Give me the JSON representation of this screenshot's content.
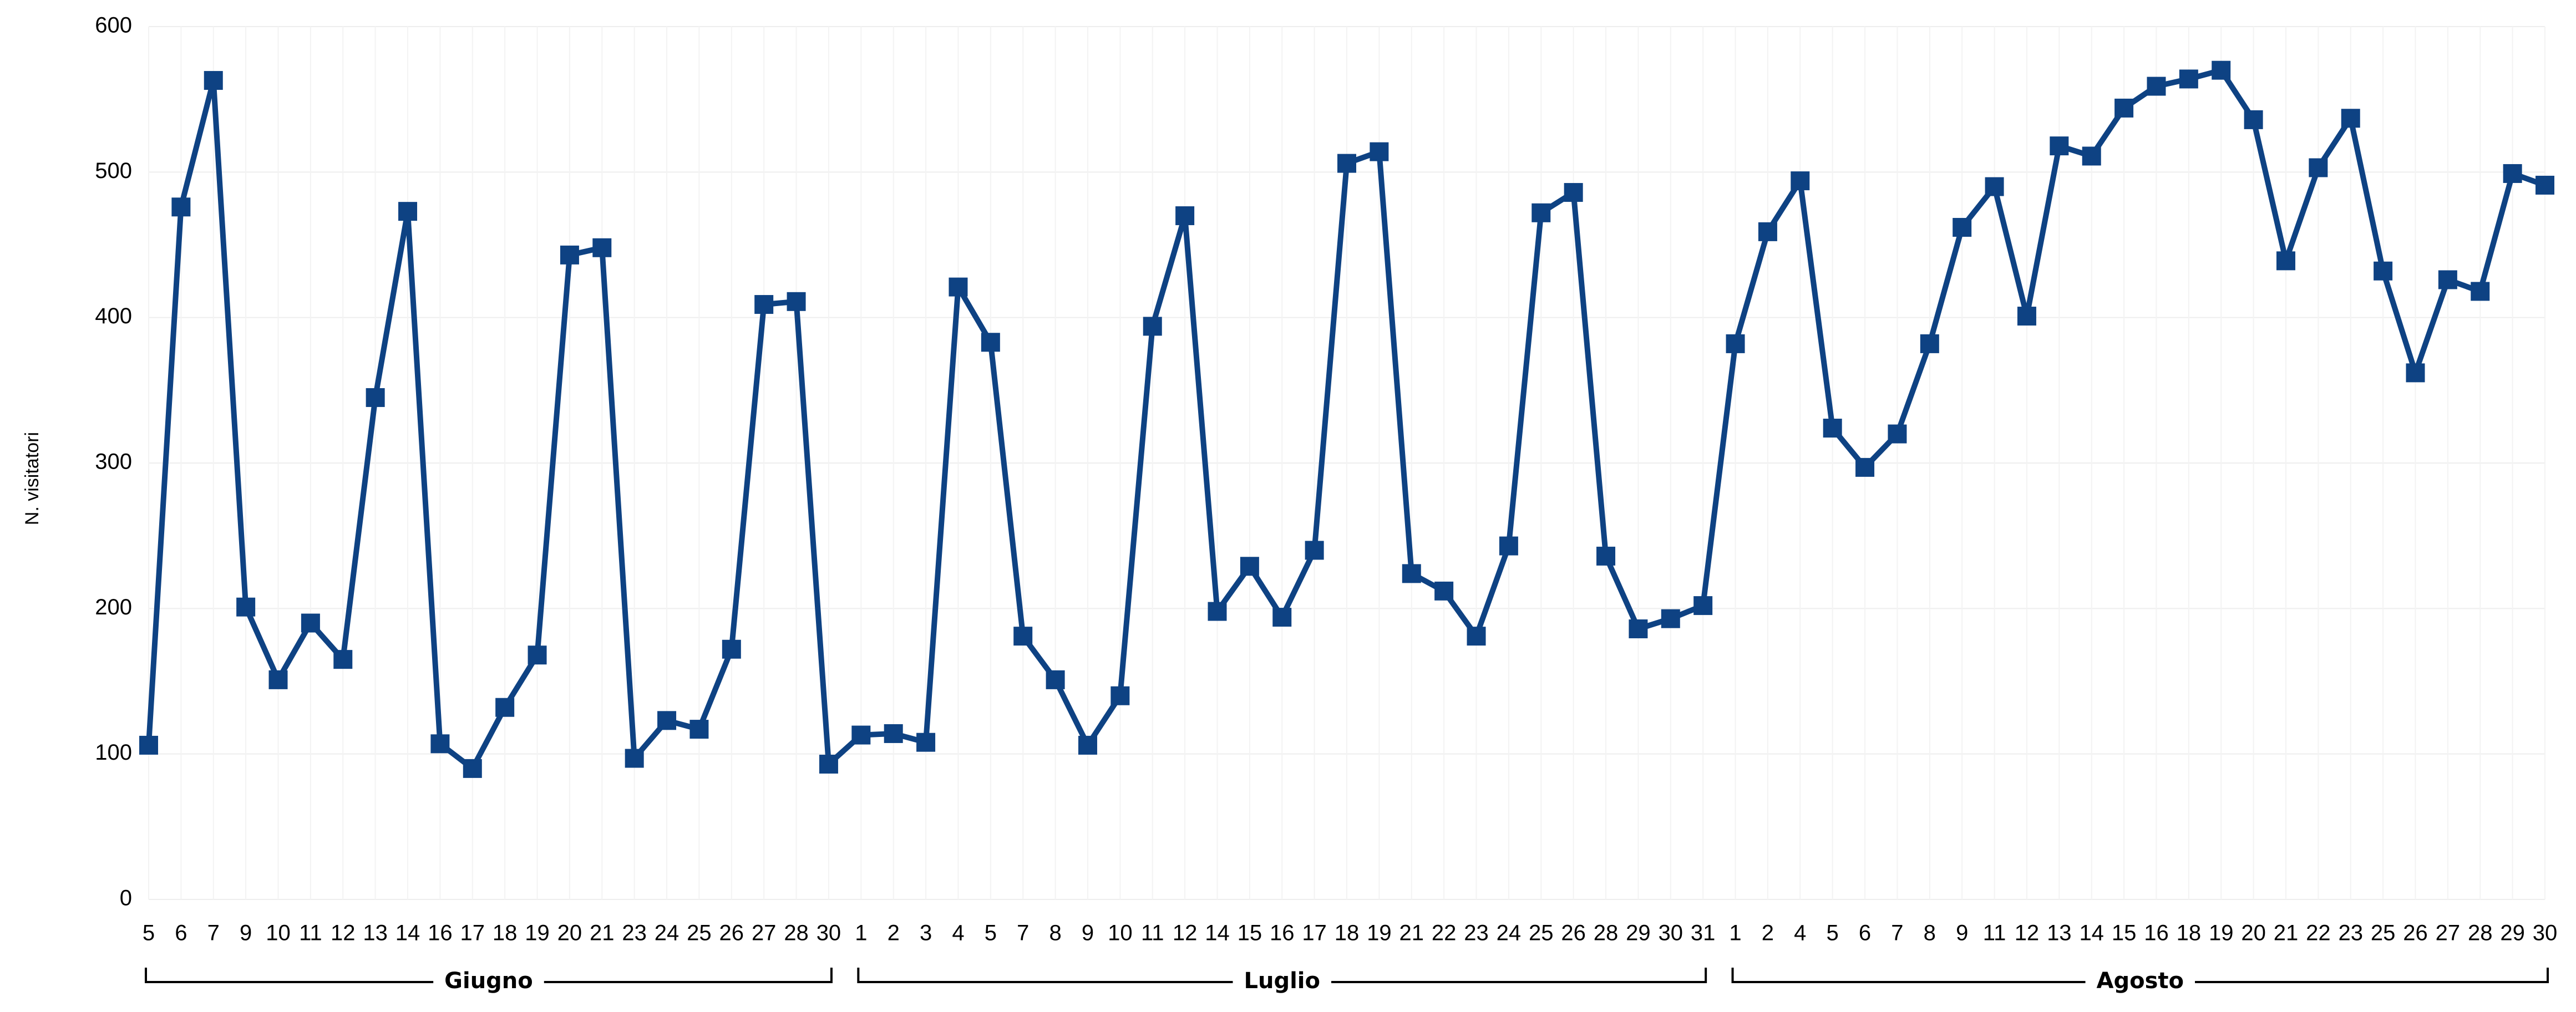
{
  "chart_data": {
    "type": "line",
    "y_label": "N. visitatori",
    "color": "#0e4283",
    "ylim": [
      0,
      600
    ],
    "yticks": [
      0,
      100,
      200,
      300,
      400,
      500,
      600
    ],
    "grid": true,
    "groups": [
      {
        "name": "Giugno",
        "categories": [
          "5",
          "6",
          "7",
          "9",
          "10",
          "11",
          "12",
          "13",
          "14",
          "16",
          "17",
          "18",
          "19",
          "20",
          "21",
          "23",
          "24",
          "25",
          "26",
          "27",
          "28",
          "30"
        ],
        "values": [
          106,
          476,
          563,
          201,
          151,
          190,
          165,
          345,
          473,
          107,
          90,
          132,
          168,
          443,
          448,
          97,
          123,
          117,
          172,
          409,
          411,
          93
        ]
      },
      {
        "name": "Luglio",
        "categories": [
          "1",
          "2",
          "3",
          "4",
          "5",
          "7",
          "8",
          "9",
          "10",
          "11",
          "12",
          "14",
          "15",
          "16",
          "17",
          "18",
          "19",
          "21",
          "22",
          "23",
          "24",
          "25",
          "26",
          "28",
          "29",
          "30",
          "31"
        ],
        "values": [
          113,
          114,
          108,
          421,
          383,
          181,
          151,
          106,
          140,
          394,
          470,
          198,
          229,
          194,
          240,
          506,
          514,
          224,
          212,
          181,
          243,
          472,
          486,
          236,
          186,
          193,
          202
        ]
      },
      {
        "name": "Agosto",
        "categories": [
          "1",
          "2",
          "4",
          "5",
          "6",
          "7",
          "8",
          "9",
          "11",
          "12",
          "13",
          "14",
          "15",
          "16",
          "18",
          "19",
          "20",
          "21",
          "22",
          "23",
          "25",
          "26",
          "27",
          "28",
          "29",
          "30"
        ],
        "values": [
          382,
          459,
          494,
          324,
          297,
          320,
          382,
          462,
          490,
          401,
          518,
          511,
          544,
          559,
          564,
          570,
          536,
          439,
          503,
          537,
          432,
          362,
          426,
          418,
          499,
          491
        ]
      }
    ]
  }
}
